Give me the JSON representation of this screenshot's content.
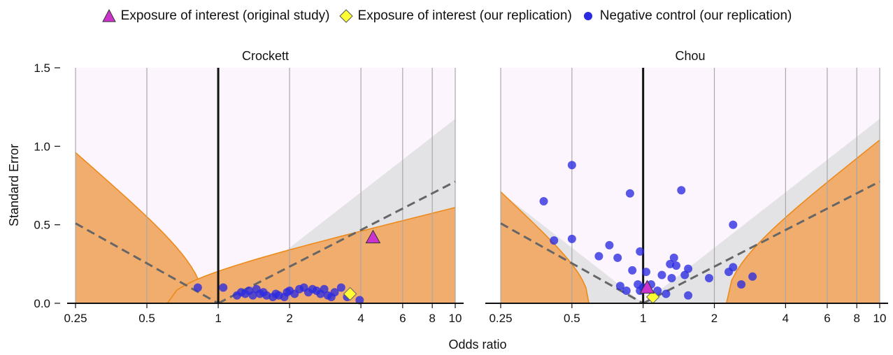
{
  "legend": {
    "items": [
      {
        "label": "Exposure of interest (original study)",
        "symbol": "triangle",
        "color": "#cc33cc"
      },
      {
        "label": "Exposure of interest (our replication)",
        "symbol": "diamond",
        "color": "#ffff33"
      },
      {
        "label": "Negative control (our replication)",
        "symbol": "circle",
        "color": "#1a1adb"
      }
    ]
  },
  "colors": {
    "panel_bg": "#fdf5fd",
    "funnel_fill": "#e3e2e4",
    "orange_fill": "#f0ad6e",
    "orange_line": "#ee8a1a",
    "negative_control": "#2a2ae0",
    "replication": "#ffff33",
    "original": "#cc33cc",
    "gridline": "#a8a8a8",
    "dashed": "#666666"
  },
  "chart_data": [
    {
      "type": "scatter",
      "title": "Crockett",
      "xlabel": "Odds ratio",
      "ylabel": "Standard Error",
      "x_scale": "log",
      "xlim": [
        0.25,
        10
      ],
      "ylim": [
        0,
        1.5
      ],
      "x_ticks": [
        "0.25",
        "0.5",
        "1",
        "2",
        "4",
        "6",
        "8",
        "10"
      ],
      "y_ticks": [
        "0.0",
        "0.5",
        "1.0",
        "1.5"
      ],
      "grid": "vertical",
      "series": [
        {
          "name": "Negative control (our replication)",
          "symbol": "circle",
          "points": [
            [
              0.82,
              0.1
            ],
            [
              1.05,
              0.1
            ],
            [
              1.2,
              0.05
            ],
            [
              1.25,
              0.07
            ],
            [
              1.3,
              0.06
            ],
            [
              1.35,
              0.08
            ],
            [
              1.4,
              0.05
            ],
            [
              1.45,
              0.09
            ],
            [
              1.5,
              0.06
            ],
            [
              1.55,
              0.07
            ],
            [
              1.6,
              0.05
            ],
            [
              1.7,
              0.04
            ],
            [
              1.75,
              0.06
            ],
            [
              1.8,
              0.05
            ],
            [
              1.9,
              0.04
            ],
            [
              1.95,
              0.07
            ],
            [
              2.0,
              0.08
            ],
            [
              2.1,
              0.06
            ],
            [
              2.2,
              0.09
            ],
            [
              2.3,
              0.1
            ],
            [
              2.4,
              0.07
            ],
            [
              2.5,
              0.09
            ],
            [
              2.6,
              0.08
            ],
            [
              2.7,
              0.06
            ],
            [
              2.8,
              0.09
            ],
            [
              2.9,
              0.05
            ],
            [
              3.0,
              0.04
            ],
            [
              3.1,
              0.07
            ],
            [
              3.3,
              0.1
            ],
            [
              3.5,
              0.04
            ],
            [
              3.95,
              0.02
            ]
          ]
        },
        {
          "name": "Exposure of interest (our replication)",
          "symbol": "diamond",
          "points": [
            [
              3.6,
              0.06
            ]
          ]
        },
        {
          "name": "Exposure of interest (original study)",
          "symbol": "triangle",
          "points": [
            [
              4.5,
              0.42
            ]
          ]
        }
      ],
      "calibration": {
        "pos_left": 0.87,
        "pos_right": 0.61
      }
    },
    {
      "type": "scatter",
      "title": "Chou",
      "xlabel": "Odds ratio",
      "ylabel": "Standard Error",
      "x_scale": "log",
      "xlim": [
        0.25,
        10
      ],
      "ylim": [
        0,
        1.5
      ],
      "x_ticks": [
        "0.25",
        "0.5",
        "1",
        "2",
        "4",
        "6",
        "8",
        "10"
      ],
      "y_ticks": [
        "0.0",
        "0.5",
        "1.0",
        "1.5"
      ],
      "grid": "vertical",
      "series": [
        {
          "name": "Negative control (our replication)",
          "symbol": "circle",
          "points": [
            [
              0.5,
              0.88
            ],
            [
              0.38,
              0.65
            ],
            [
              0.42,
              0.4
            ],
            [
              0.5,
              0.41
            ],
            [
              0.88,
              0.7
            ],
            [
              1.45,
              0.72
            ],
            [
              2.4,
              0.5
            ],
            [
              0.72,
              0.37
            ],
            [
              0.97,
              0.33
            ],
            [
              0.65,
              0.3
            ],
            [
              0.78,
              0.29
            ],
            [
              1.35,
              0.29
            ],
            [
              1.3,
              0.25
            ],
            [
              1.38,
              0.24
            ],
            [
              1.55,
              0.22
            ],
            [
              0.9,
              0.21
            ],
            [
              1.03,
              0.2
            ],
            [
              1.2,
              0.18
            ],
            [
              1.32,
              0.16
            ],
            [
              1.5,
              0.18
            ],
            [
              1.9,
              0.16
            ],
            [
              2.3,
              0.2
            ],
            [
              2.4,
              0.23
            ],
            [
              2.9,
              0.17
            ],
            [
              0.8,
              0.11
            ],
            [
              0.85,
              0.08
            ],
            [
              0.95,
              0.12
            ],
            [
              1.0,
              0.1
            ],
            [
              1.08,
              0.12
            ],
            [
              1.15,
              0.08
            ],
            [
              1.25,
              0.06
            ],
            [
              0.97,
              0.08
            ],
            [
              1.55,
              0.05
            ],
            [
              2.6,
              0.12
            ]
          ]
        },
        {
          "name": "Exposure of interest (our replication)",
          "symbol": "diamond",
          "points": [
            [
              1.1,
              0.04
            ]
          ]
        },
        {
          "name": "Exposure of interest (original study)",
          "symbol": "triangle",
          "points": [
            [
              1.04,
              0.1
            ]
          ]
        }
      ],
      "calibration": {
        "pos_left": 0.59,
        "pos_right": 2.25
      }
    }
  ]
}
